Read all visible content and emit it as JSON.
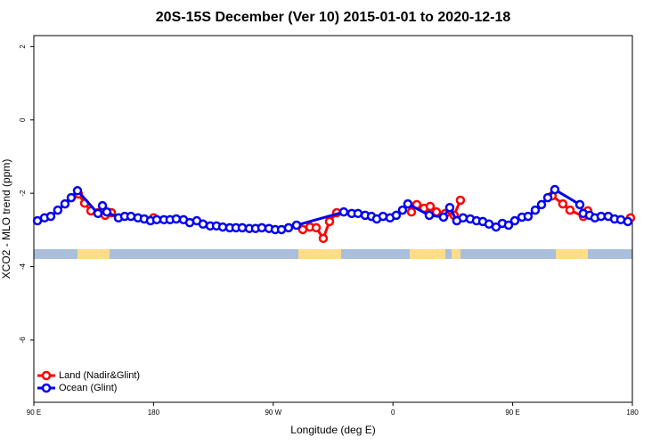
{
  "chart_data": {
    "type": "line",
    "title": "20S-15S December (Ver 10)   2015-01-01 to 2020-12-18",
    "xlabel": "Longitude (deg E)",
    "ylabel": "XCO2 - MLO trend (ppm)",
    "xlim": [
      90,
      540
    ],
    "xticks": [
      {
        "value": 90,
        "label": "90 E"
      },
      180,
      {
        "value": 270,
        "label": "90 W"
      },
      {
        "value": 360,
        "label": "0"
      },
      {
        "value": 450,
        "label": "90 E"
      },
      {
        "value": 540,
        "label": "180"
      }
    ],
    "ylim": [
      -7.7,
      2.3
    ],
    "yticks": [
      2,
      0,
      -2,
      -4,
      -6
    ],
    "legend": "bottom-left",
    "series": [
      {
        "name": "Land (Nadir&Glint)",
        "color": "#ff0000",
        "x": [
          123.5,
          128.2,
          132.9,
          138.2,
          143.6,
          148.3,
          null,
          180,
          null,
          292.2,
          297.6,
          302.3,
          307.6,
          312.3,
          317.7,
          null,
          373.9,
          377.9,
          383.3,
          388,
          392.7,
          399.4,
          406,
          410.7,
          null,
          479.7,
          487.7,
          493.1,
          503.1,
          506.5,
          null,
          538.6
        ],
        "values": [
          -2.02,
          -2.27,
          -2.48,
          -2.53,
          -2.6,
          -2.53,
          null,
          -2.67,
          null,
          -2.99,
          -2.92,
          -2.94,
          -3.23,
          -2.77,
          -2.53,
          null,
          -2.51,
          -2.31,
          -2.41,
          -2.36,
          -2.51,
          -2.55,
          -2.6,
          -2.19,
          null,
          -2.07,
          -2.29,
          -2.46,
          -2.63,
          -2.48,
          null,
          -2.67
        ]
      },
      {
        "name": "Ocean (Glint)",
        "color": "#0000ee",
        "x": [
          92.7,
          98,
          102.7,
          108,
          113.4,
          118.1,
          122.8,
          138.2,
          141.6,
          144.9,
          153.6,
          158.3,
          163,
          168.3,
          173,
          177.7,
          182.4,
          187.8,
          192.4,
          197.1,
          202.5,
          207.2,
          212.5,
          217.2,
          222.6,
          227.3,
          232,
          237.3,
          242,
          246.7,
          252,
          256.7,
          261.4,
          266.8,
          271.5,
          276.2,
          281.5,
          287.5,
          323,
          329,
          333.7,
          339.1,
          343.8,
          347.8,
          352.5,
          357.8,
          362.5,
          367.2,
          371.2,
          387.3,
          398,
          402.7,
          408,
          412.7,
          418.1,
          422.8,
          427.5,
          432.2,
          437.5,
          442.2,
          446.9,
          451.6,
          457,
          461.6,
          467,
          471.7,
          476.4,
          481.7,
          500.5,
          503.1,
          507.8,
          511.8,
          516.5,
          521.9,
          526.6,
          531.3,
          536.6
        ],
        "values": [
          -2.75,
          -2.67,
          -2.63,
          -2.46,
          -2.29,
          -2.12,
          -1.93,
          -2.55,
          -2.34,
          -2.51,
          -2.67,
          -2.63,
          -2.63,
          -2.67,
          -2.7,
          -2.75,
          -2.72,
          -2.72,
          -2.72,
          -2.7,
          -2.72,
          -2.8,
          -2.75,
          -2.84,
          -2.89,
          -2.89,
          -2.92,
          -2.94,
          -2.94,
          -2.94,
          -2.96,
          -2.96,
          -2.94,
          -2.96,
          -2.99,
          -2.99,
          -2.94,
          -2.87,
          -2.51,
          -2.55,
          -2.55,
          -2.6,
          -2.63,
          -2.7,
          -2.63,
          -2.67,
          -2.6,
          -2.46,
          -2.29,
          -2.6,
          -2.65,
          -2.39,
          -2.75,
          -2.67,
          -2.7,
          -2.75,
          -2.77,
          -2.84,
          -2.92,
          -2.82,
          -2.87,
          -2.75,
          -2.65,
          -2.63,
          -2.46,
          -2.31,
          -2.12,
          -1.9,
          -2.31,
          -2.55,
          -2.6,
          -2.67,
          -2.63,
          -2.63,
          -2.7,
          -2.72,
          -2.77
        ]
      }
    ]
  }
}
